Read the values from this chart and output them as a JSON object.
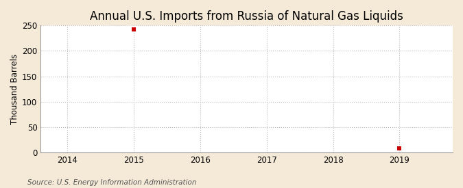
{
  "title": "Annual U.S. Imports from Russia of Natural Gas Liquids",
  "ylabel": "Thousand Barrels",
  "source": "Source: U.S. Energy Information Administration",
  "figure_bg": "#f5ead8",
  "plot_bg": "#ffffff",
  "x_data": [
    2015,
    2019
  ],
  "y_data": [
    243,
    8
  ],
  "marker_color": "#cc0000",
  "marker_size": 4,
  "ylim": [
    0,
    250
  ],
  "yticks": [
    0,
    50,
    100,
    150,
    200,
    250
  ],
  "xlim": [
    2013.6,
    2019.8
  ],
  "xticks": [
    2014,
    2015,
    2016,
    2017,
    2018,
    2019
  ],
  "grid_color": "#bbbbbb",
  "title_fontsize": 12,
  "label_fontsize": 8.5,
  "tick_fontsize": 8.5,
  "source_fontsize": 7.5
}
